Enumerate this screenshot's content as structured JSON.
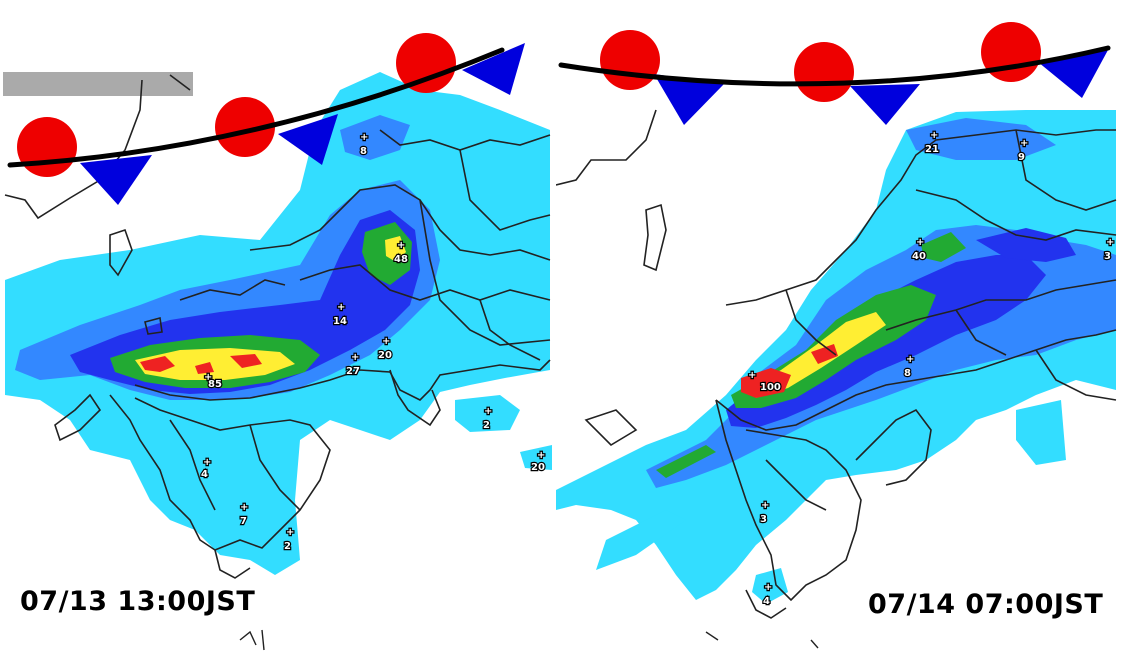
{
  "colors": {
    "warm_front": "#ee0000",
    "cold_front": "#0000dd",
    "front_line": "#000000",
    "rain_lightest": "#33ddff",
    "rain_light": "#3388ff",
    "rain_moderate": "#2233ee",
    "rain_heavy": "#22aa33",
    "rain_very_heavy": "#ffee33",
    "rain_intense": "#ee2222",
    "land_outline": "#222222",
    "missing_data": "#aaaaaa"
  },
  "panels": [
    {
      "id": "left",
      "timestamp": "07/13 13:00JST",
      "readings": [
        {
          "value": "8"
        },
        {
          "value": "48"
        },
        {
          "value": "14"
        },
        {
          "value": "20"
        },
        {
          "value": "27"
        },
        {
          "value": "85"
        },
        {
          "value": "2"
        },
        {
          "value": "20"
        },
        {
          "value": "4"
        },
        {
          "value": "7"
        },
        {
          "value": "2"
        }
      ]
    },
    {
      "id": "right",
      "timestamp": "07/14 07:00JST",
      "readings": [
        {
          "value": "21"
        },
        {
          "value": "9"
        },
        {
          "value": "40"
        },
        {
          "value": "3"
        },
        {
          "value": "8"
        },
        {
          "value": "100"
        },
        {
          "value": "3"
        },
        {
          "value": "4"
        }
      ]
    }
  ]
}
